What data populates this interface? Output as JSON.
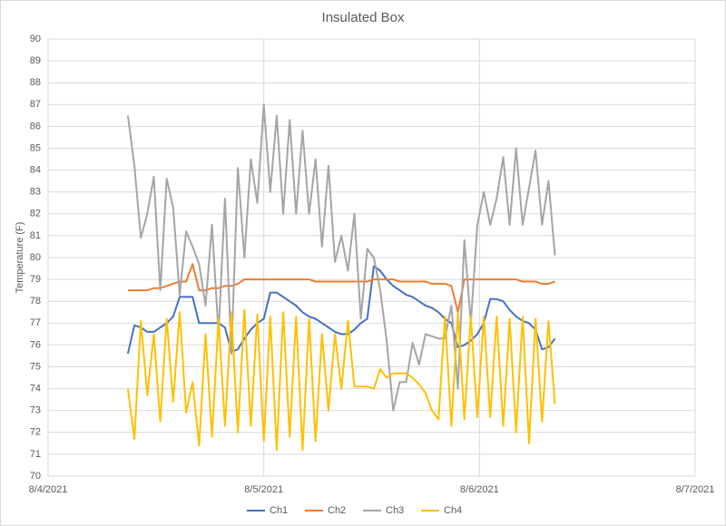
{
  "chart_data": {
    "type": "line",
    "title": "Insulated Box",
    "y_label": "Temperature (F)",
    "x": [
      0.37,
      0.4,
      0.43,
      0.46,
      0.49,
      0.52,
      0.55,
      0.58,
      0.61,
      0.64,
      0.67,
      0.7,
      0.73,
      0.76,
      0.79,
      0.82,
      0.85,
      0.88,
      0.91,
      0.94,
      0.97,
      1.0,
      1.03,
      1.06,
      1.09,
      1.12,
      1.15,
      1.18,
      1.21,
      1.24,
      1.27,
      1.3,
      1.33,
      1.36,
      1.39,
      1.42,
      1.45,
      1.48,
      1.51,
      1.54,
      1.57,
      1.6,
      1.63,
      1.66,
      1.69,
      1.72,
      1.75,
      1.78,
      1.81,
      1.84,
      1.87,
      1.9,
      1.93,
      1.96,
      1.99,
      2.02,
      2.05,
      2.08,
      2.11,
      2.14,
      2.17,
      2.2,
      2.23,
      2.26,
      2.29,
      2.32,
      2.35
    ],
    "series": [
      {
        "name": "Ch1",
        "color": "#4472c4",
        "values": [
          75.6,
          76.9,
          76.8,
          76.6,
          76.6,
          76.8,
          77,
          77.3,
          78.2,
          78.2,
          78.2,
          77,
          77,
          77,
          77,
          76.8,
          75.7,
          75.8,
          76.3,
          76.7,
          77,
          77.2,
          78.4,
          78.4,
          78.2,
          78,
          77.8,
          77.5,
          77.3,
          77.2,
          77,
          76.8,
          76.6,
          76.5,
          76.5,
          76.7,
          77,
          77.2,
          79.6,
          79.4,
          79.0,
          78.7,
          78.5,
          78.3,
          78.2,
          78.0,
          77.8,
          77.7,
          77.5,
          77.2,
          77.0,
          75.9,
          76.0,
          76.2,
          76.5,
          77.0,
          78.1,
          78.1,
          78.0,
          77.6,
          77.3,
          77.1,
          77.0,
          76.7,
          75.8,
          75.9,
          76.3
        ]
      },
      {
        "name": "Ch2",
        "color": "#ed7d31",
        "values": [
          78.5,
          78.5,
          78.5,
          78.5,
          78.6,
          78.6,
          78.7,
          78.8,
          78.9,
          78.9,
          79.7,
          78.5,
          78.5,
          78.6,
          78.6,
          78.7,
          78.7,
          78.8,
          79.0,
          79.0,
          79.0,
          79.0,
          79.0,
          79.0,
          79.0,
          79.0,
          79.0,
          79.0,
          79.0,
          78.9,
          78.9,
          78.9,
          78.9,
          78.9,
          78.9,
          78.9,
          78.9,
          78.9,
          79.0,
          79.0,
          79.0,
          79.0,
          78.9,
          78.9,
          78.9,
          78.9,
          78.9,
          78.8,
          78.8,
          78.8,
          78.7,
          77.5,
          79.0,
          79.0,
          79.0,
          79.0,
          79.0,
          79.0,
          79.0,
          79.0,
          79.0,
          78.9,
          78.9,
          78.9,
          78.8,
          78.8,
          78.9
        ]
      },
      {
        "name": "Ch3",
        "color": "#a5a5a5",
        "values": [
          86.5,
          84.2,
          80.9,
          82,
          83.7,
          78.5,
          83.6,
          82.3,
          78.3,
          81.2,
          80.5,
          79.7,
          77.8,
          81.5,
          76.5,
          82.7,
          75.6,
          84.1,
          80,
          84.5,
          82.5,
          87,
          83,
          86.5,
          82,
          86.3,
          82,
          85.8,
          82,
          84.5,
          80.5,
          84.2,
          79.8,
          81,
          79.4,
          82,
          77.2,
          80.4,
          80,
          78.5,
          76.2,
          73,
          74.3,
          74.3,
          76.1,
          75.1,
          76.5,
          76.4,
          76.3,
          76.3,
          77.8,
          74,
          80.8,
          77,
          81.5,
          83,
          81.5,
          82.7,
          84.6,
          81.5,
          85,
          81.5,
          83.2,
          84.9,
          81.5,
          83.5,
          80.1
        ]
      },
      {
        "name": "Ch4",
        "color": "#ffc000",
        "values": [
          74,
          71.7,
          77.1,
          73.7,
          76.5,
          72.5,
          77.2,
          73.4,
          77.5,
          72.9,
          74.3,
          71.4,
          76.5,
          71.8,
          77.2,
          72.3,
          77.5,
          72,
          77.6,
          72.3,
          77.4,
          71.6,
          77.3,
          71.2,
          77.5,
          71.8,
          77.3,
          71.2,
          77.2,
          71.6,
          76.5,
          73,
          76.5,
          74,
          77.1,
          74.1,
          74.1,
          74.1,
          74.0,
          74.9,
          74.5,
          74.7,
          74.7,
          74.7,
          74.5,
          74.2,
          73.8,
          73.0,
          72.6,
          77.3,
          72.3,
          77.5,
          72.6,
          77.3,
          72.7,
          77.3,
          72.7,
          77.3,
          72.3,
          77.2,
          72,
          77.3,
          71.5,
          77.2,
          72.5,
          77.1,
          73.3
        ]
      }
    ],
    "xlim": [
      0,
      3
    ],
    "xticks": [
      {
        "value": 0,
        "label": "8/4/2021"
      },
      {
        "value": 1,
        "label": "8/5/2021"
      },
      {
        "value": 2,
        "label": "8/6/2021"
      },
      {
        "value": 3,
        "label": "8/7/2021"
      }
    ],
    "ylim": [
      70,
      90
    ],
    "yticks": [
      70,
      71,
      72,
      73,
      74,
      75,
      76,
      77,
      78,
      79,
      80,
      81,
      82,
      83,
      84,
      85,
      86,
      87,
      88,
      89,
      90
    ],
    "grid": true,
    "legend": "bottom"
  }
}
